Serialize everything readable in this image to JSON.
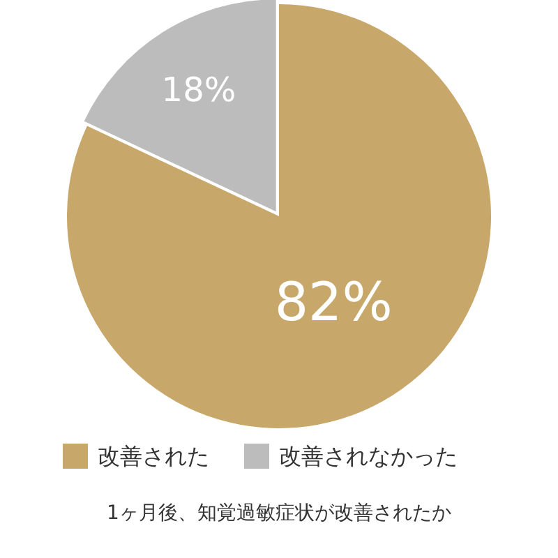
{
  "chart_data": {
    "type": "pie",
    "categories": [
      "改善された",
      "改善されなかった"
    ],
    "values": [
      82,
      18
    ],
    "colors": [
      "#c8a86a",
      "#bcbcbc"
    ],
    "value_labels": [
      "82%",
      "18%"
    ],
    "legend": "bottom",
    "annotations": [
      "1ヶ月後、知覚過敏症状が改善されたか"
    ]
  }
}
